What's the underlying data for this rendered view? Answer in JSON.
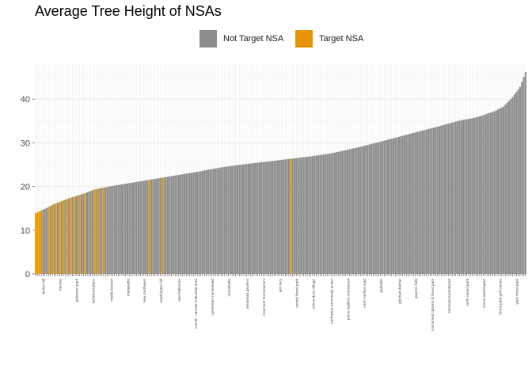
{
  "chart_data": {
    "type": "bar",
    "title": "Average Tree Height of NSAs",
    "xlabel": "",
    "ylabel": "",
    "ylim": [
      0,
      48
    ],
    "y_ticks": [
      0,
      10,
      20,
      30,
      40
    ],
    "legend": {
      "position": "top",
      "entries": [
        {
          "name": "Not Target NSA",
          "color": "#8c8c8c"
        },
        {
          "name": "Target NSA",
          "color": "#e69500"
        }
      ]
    },
    "grid": true,
    "tick_labels_visible": [
      "bolton hill",
      "barclay",
      "patterson park",
      "lockwood place",
      "middle branch",
      "orangeville",
      "new southwest",
      "washington hill",
      "east baltimore",
      "carroll - camden industrial area",
      "coldstream homestead",
      "montebello",
      "armistead gardens",
      "rosemont homeowners",
      "pen lucy",
      "central forest park",
      "edmondson village",
      "northwest community action",
      "johns hopkins homewood",
      "north harford road",
      "parkside",
      "glenham-belhar",
      "gwynns falls",
      "concerned citizens of forest park",
      "stonewood-pentwood",
      "north roland park",
      "mount washington",
      "forest park golf course",
      "west forest park"
    ],
    "series": [
      {
        "name": "Not Target NSA",
        "color": "#8c8c8c"
      },
      {
        "name": "Target NSA",
        "color": "#e69500"
      }
    ],
    "n_bars": 268,
    "target_bar_indices": [
      0,
      1,
      2,
      3,
      7,
      9,
      11,
      13,
      15,
      17,
      19,
      21,
      24,
      27,
      32,
      34,
      37,
      62,
      69,
      139
    ],
    "value_profile": [
      [
        0,
        13.9
      ],
      [
        6,
        15.1
      ],
      [
        10,
        16.0
      ],
      [
        18,
        17.3
      ],
      [
        25,
        18.2
      ],
      [
        32,
        19.3
      ],
      [
        40,
        20.0
      ],
      [
        50,
        20.7
      ],
      [
        60,
        21.4
      ],
      [
        70,
        22.1
      ],
      [
        80,
        22.8
      ],
      [
        90,
        23.5
      ],
      [
        100,
        24.3
      ],
      [
        110,
        24.9
      ],
      [
        120,
        25.4
      ],
      [
        130,
        25.9
      ],
      [
        140,
        26.4
      ],
      [
        150,
        26.9
      ],
      [
        160,
        27.5
      ],
      [
        170,
        28.4
      ],
      [
        180,
        29.4
      ],
      [
        190,
        30.5
      ],
      [
        200,
        31.6
      ],
      [
        210,
        32.7
      ],
      [
        220,
        33.8
      ],
      [
        230,
        35.0
      ],
      [
        240,
        35.8
      ],
      [
        250,
        37.2
      ],
      [
        255,
        38.3
      ],
      [
        260,
        40.5
      ],
      [
        264,
        42.8
      ],
      [
        267,
        46.2
      ]
    ]
  }
}
